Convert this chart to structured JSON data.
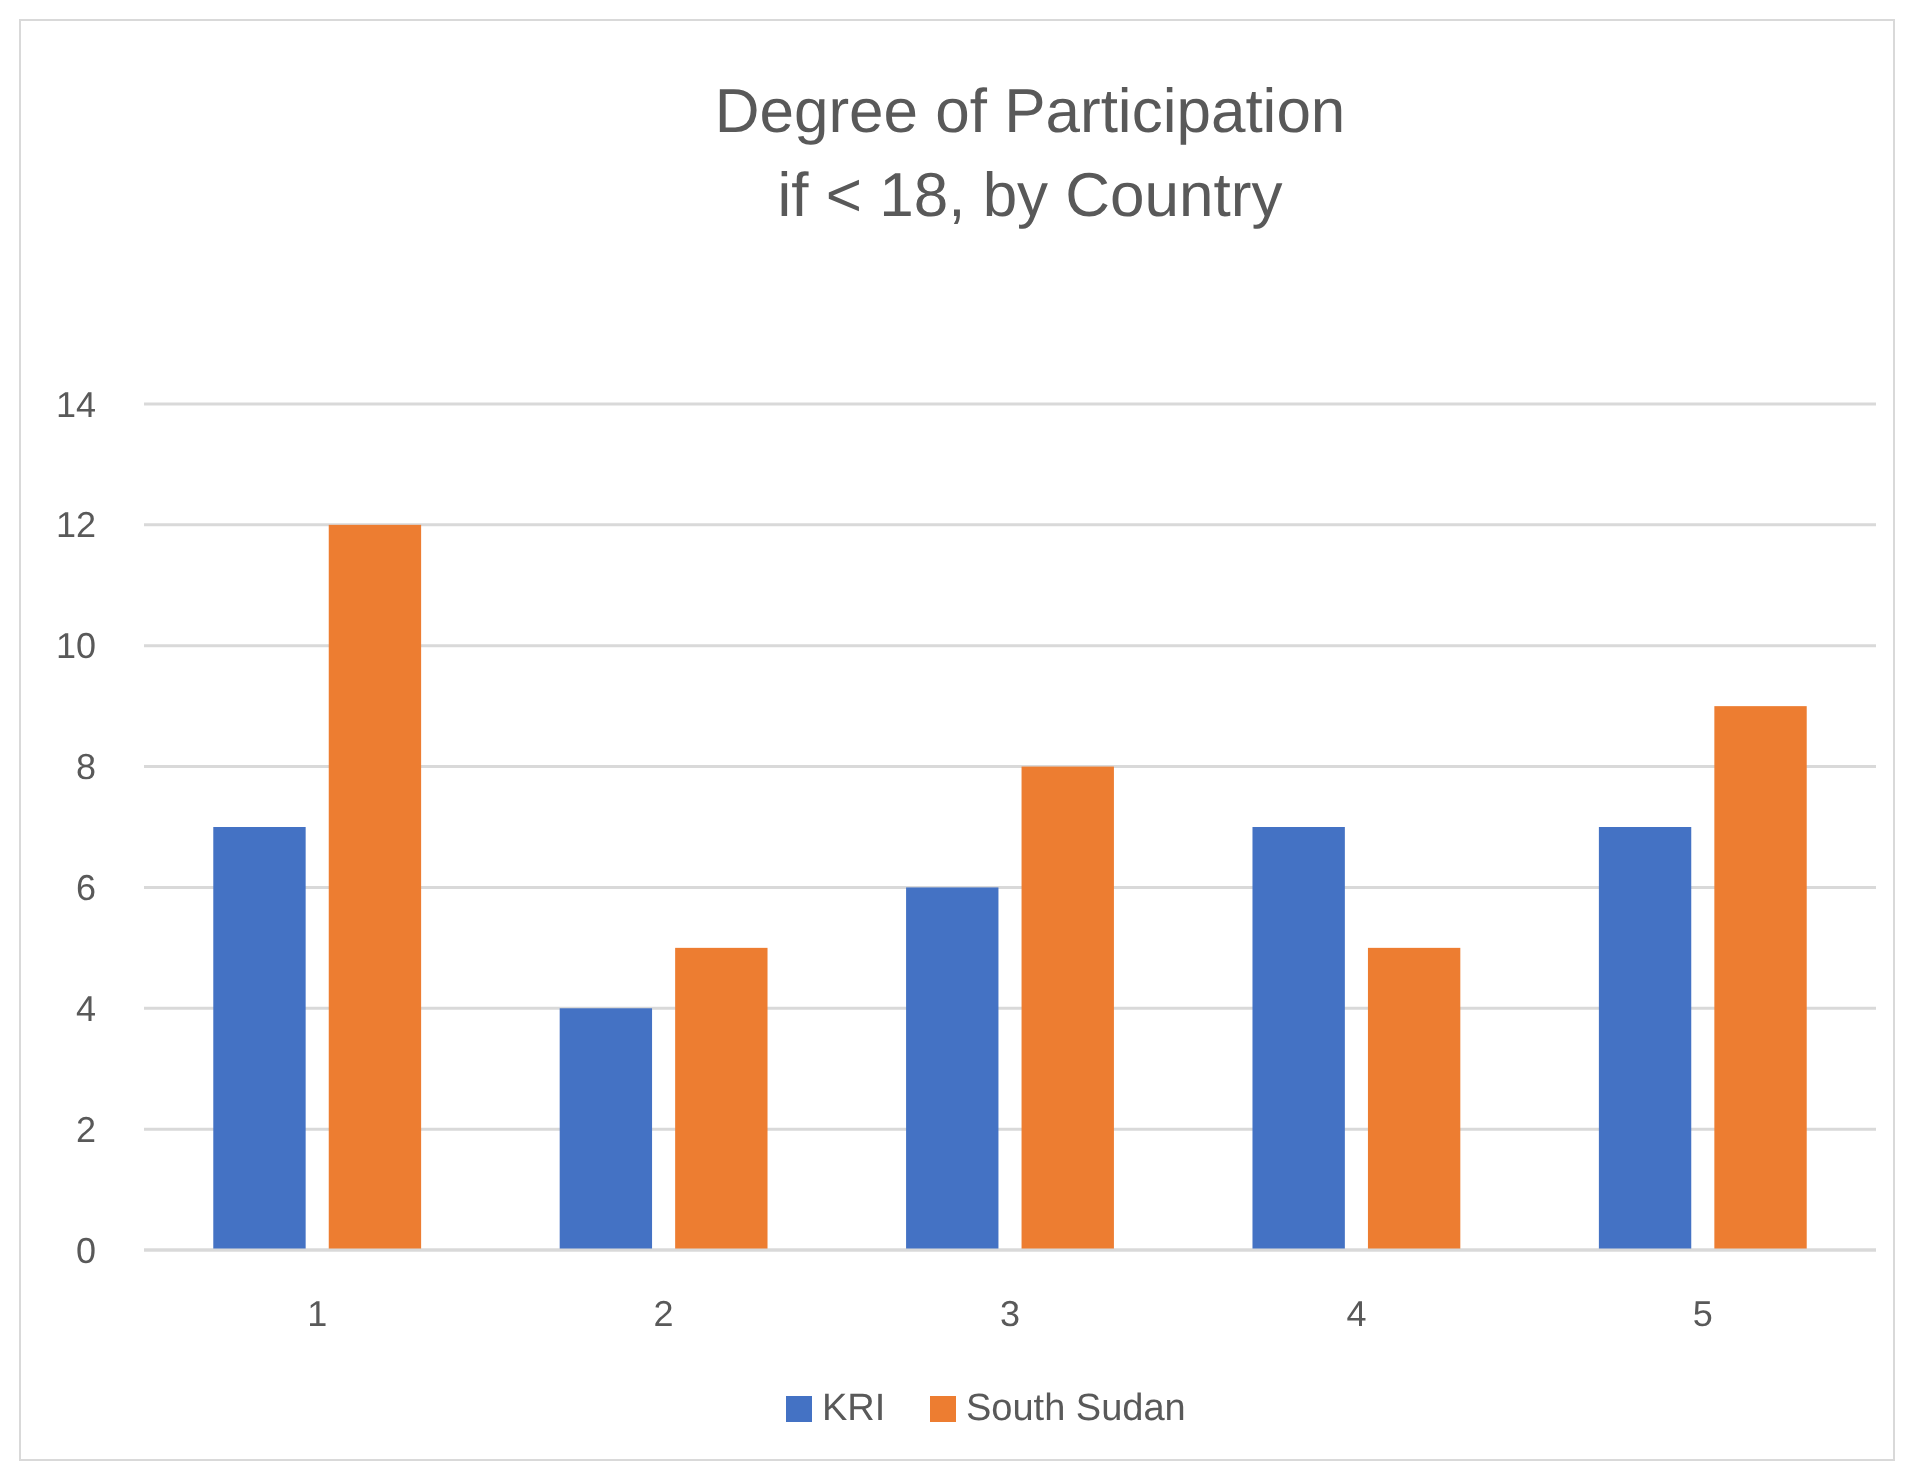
{
  "chart_data": {
    "type": "bar",
    "title": "Degree of Participation\nif < 18, by Country",
    "categories": [
      "1",
      "2",
      "3",
      "4",
      "5"
    ],
    "series": [
      {
        "name": "KRI",
        "color": "#4472c4",
        "values": [
          7,
          4,
          6,
          7,
          7
        ]
      },
      {
        "name": "South Sudan",
        "color": "#ed7d31",
        "values": [
          12,
          5,
          8,
          5,
          9
        ]
      }
    ],
    "ylim": [
      0,
      14
    ],
    "yticks": [
      0,
      2,
      4,
      6,
      8,
      10,
      12,
      14
    ],
    "grid": "y",
    "legend": "bottom"
  }
}
